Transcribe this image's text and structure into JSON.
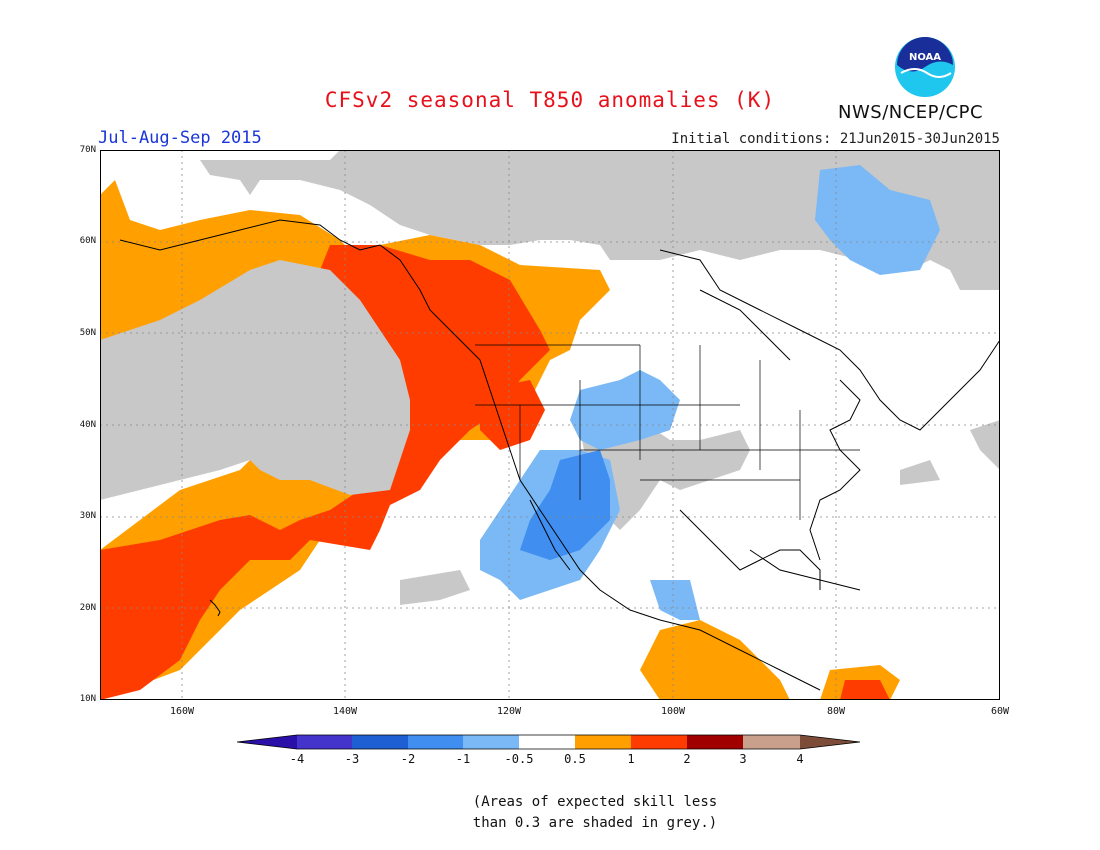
{
  "header": {
    "title": "CFSv2 seasonal T850 anomalies (K)",
    "season": "Jul-Aug-Sep 2015",
    "initial_conditions": "Initial conditions: 21Jun2015-30Jun2015",
    "agency": "NWS/NCEP/CPC",
    "logo_text": "NOAA",
    "logo_icon": "noaa-logo-icon"
  },
  "map": {
    "lat_labels": [
      "70N",
      "60N",
      "50N",
      "40N",
      "30N",
      "20N",
      "10N"
    ],
    "lon_labels": [
      "160W",
      "140W",
      "120W",
      "100W",
      "80W",
      "60W"
    ],
    "extent": {
      "lon": [
        -170,
        -60
      ],
      "lat": [
        10,
        70
      ]
    },
    "grid": true
  },
  "legend": {
    "tick_labels": [
      "-4",
      "-3",
      "-2",
      "-1",
      "-0.5",
      "0.5",
      "1",
      "2",
      "3",
      "4"
    ],
    "colors": [
      "#2a10a8",
      "#4434cc",
      "#1e60d4",
      "#3f8ef0",
      "#7ab8f6",
      "#ffffff",
      "#ffa000",
      "#ff3c00",
      "#a00000",
      "#c8a08c",
      "#7c4c38"
    ],
    "skill_color": "#c8c8c8"
  },
  "note": {
    "line1": "(Areas of expected skill less",
    "line2": "than 0.3 are shaded in grey.)"
  }
}
